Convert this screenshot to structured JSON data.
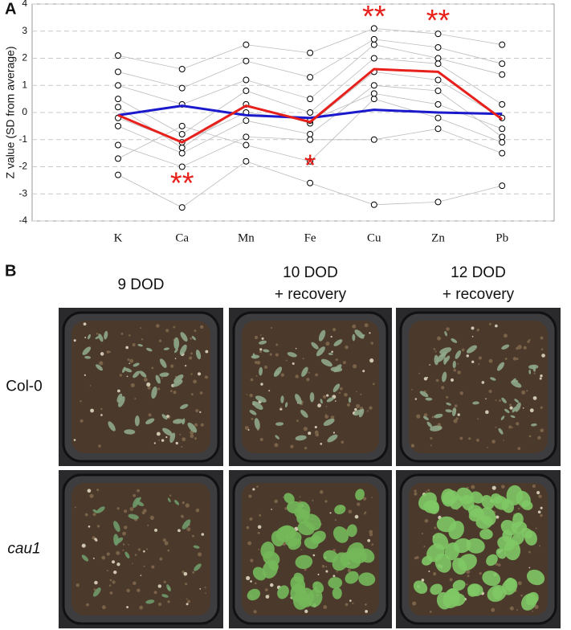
{
  "chart_data": {
    "type": "line",
    "panel_label": "A",
    "y_label": "Z value (SD from average)",
    "categories": [
      "K",
      "Ca",
      "Mn",
      "Fe",
      "Cu",
      "Zn",
      "Pb"
    ],
    "ylim": [
      -4,
      4
    ],
    "yticks": [
      -4,
      -3,
      -2,
      -1,
      0,
      1,
      2,
      3,
      4
    ],
    "grid": true,
    "series": [
      {
        "color": "#bbbbbb",
        "marker": "circle",
        "values": [
          2.1,
          1.6,
          2.5,
          2.2,
          3.1,
          2.9,
          2.5
        ]
      },
      {
        "color": "#bbbbbb",
        "marker": "circle",
        "values": [
          -2.3,
          -3.5,
          -1.8,
          -2.6,
          -3.4,
          -3.3,
          -2.7
        ]
      },
      {
        "color": "#bbbbbb",
        "marker": "circle",
        "values": [
          1.0,
          0.3,
          1.2,
          0.5,
          2.5,
          2.0,
          1.4
        ]
      },
      {
        "color": "#bbbbbb",
        "marker": "circle",
        "values": [
          -0.5,
          -1.5,
          -0.3,
          -0.8,
          1.0,
          0.8,
          -0.9
        ]
      },
      {
        "color": "#bbbbbb",
        "marker": "circle",
        "values": [
          0.5,
          -0.8,
          0.8,
          0.0,
          2.0,
          1.8,
          0.3
        ]
      },
      {
        "color": "#bbbbbb",
        "marker": "circle",
        "values": [
          -1.2,
          -2.0,
          -0.9,
          -1.0,
          -1.0,
          -0.6,
          -1.5
        ]
      },
      {
        "color": "#bbbbbb",
        "marker": "circle",
        "values": [
          0.2,
          -1.3,
          0.3,
          -0.4,
          1.5,
          1.2,
          -0.2
        ]
      },
      {
        "color": "#bbbbbb",
        "marker": "circle",
        "values": [
          -1.7,
          -0.5,
          -1.2,
          -1.8,
          0.5,
          -0.2,
          -1.1
        ]
      },
      {
        "color": "#bbbbbb",
        "marker": "circle",
        "values": [
          1.5,
          0.9,
          1.9,
          1.3,
          2.7,
          2.4,
          1.8
        ]
      },
      {
        "color": "#bbbbbb",
        "marker": "circle",
        "values": [
          -0.2,
          -1.1,
          0.0,
          -0.3,
          0.7,
          0.3,
          -0.6
        ]
      },
      {
        "color": "#1a1acc",
        "values": [
          -0.1,
          0.25,
          -0.1,
          -0.2,
          0.1,
          0.0,
          -0.05
        ]
      },
      {
        "color": "#e8201c",
        "values": [
          -0.1,
          -1.1,
          0.25,
          -0.35,
          1.6,
          1.5,
          -0.25
        ]
      }
    ],
    "annotations": [
      {
        "text": "**",
        "x": "Ca",
        "y": -2.5
      },
      {
        "text": "*",
        "x": "Fe",
        "y": -1.85
      },
      {
        "text": "**",
        "x": "Cu",
        "y": 3.65
      },
      {
        "text": "**",
        "x": "Zn",
        "y": 3.5
      }
    ]
  },
  "panel_b": {
    "label": "B",
    "columns": [
      [
        "9 DOD"
      ],
      [
        "10 DOD",
        "+ recovery"
      ],
      [
        "12 DOD",
        "+ recovery"
      ]
    ],
    "rows": [
      "Col-0",
      "cau1"
    ]
  }
}
